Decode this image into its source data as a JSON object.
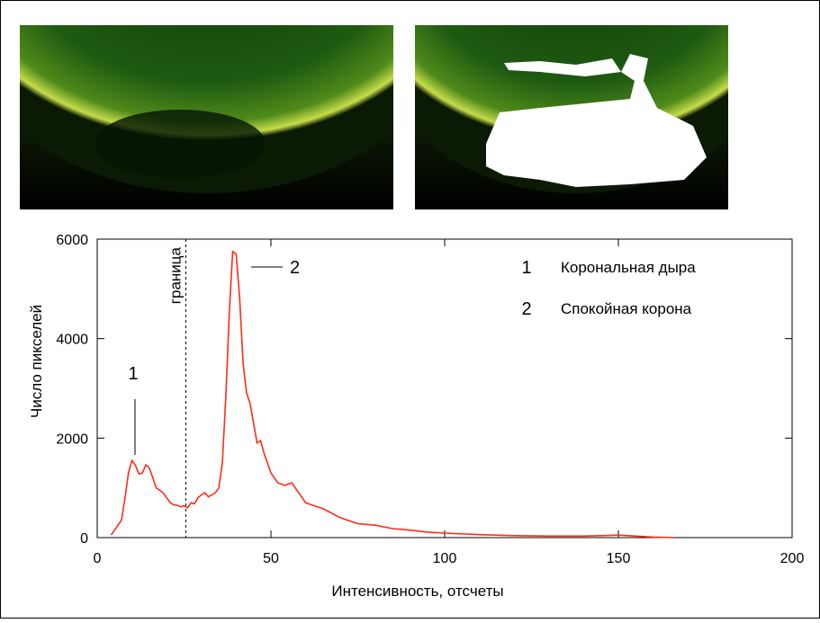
{
  "chart_data": {
    "type": "line",
    "x_label": "Интенсивность, отсчеты",
    "y_label": "Число пикселей",
    "x": [
      4,
      5,
      7,
      8,
      9,
      10,
      11,
      12,
      13,
      14,
      15,
      16,
      17,
      18,
      19,
      20,
      21,
      22,
      23,
      24,
      25,
      26,
      27,
      28,
      29,
      30,
      31,
      32,
      33,
      34,
      35,
      36,
      37,
      38,
      39,
      40,
      41,
      42,
      43,
      44,
      45,
      46,
      47,
      48,
      49,
      50,
      52,
      54,
      56,
      58,
      60,
      62,
      65,
      70,
      75,
      80,
      85,
      90,
      95,
      100,
      110,
      120,
      130,
      140,
      145,
      150,
      155,
      160,
      166
    ],
    "series": [
      {
        "color": "#ff2a1a",
        "values": [
          50,
          150,
          350,
          800,
          1300,
          1550,
          1450,
          1280,
          1300,
          1460,
          1400,
          1200,
          1000,
          950,
          900,
          800,
          700,
          660,
          650,
          620,
          640,
          600,
          700,
          680,
          800,
          860,
          900,
          820,
          860,
          900,
          1000,
          1500,
          2800,
          4500,
          5750,
          5700,
          4800,
          3500,
          2900,
          2700,
          2300,
          1900,
          1950,
          1700,
          1500,
          1300,
          1100,
          1050,
          1100,
          900,
          700,
          650,
          580,
          400,
          280,
          250,
          180,
          150,
          110,
          90,
          60,
          40,
          30,
          30,
          40,
          50,
          30,
          10,
          0
        ]
      }
    ],
    "xlim": [
      0,
      200
    ],
    "xticks": [
      0,
      50,
      100,
      150,
      200
    ],
    "ylim": [
      0,
      6000
    ],
    "yticks": [
      0,
      2000,
      4000,
      6000
    ],
    "boundary": {
      "label": "граница",
      "x": 25.5
    },
    "peak_labels": [
      "1",
      "2"
    ],
    "legend_items": [
      {
        "key": "1",
        "text": "Корональная дыра"
      },
      {
        "key": "2",
        "text": "Спокойная корона"
      }
    ]
  }
}
